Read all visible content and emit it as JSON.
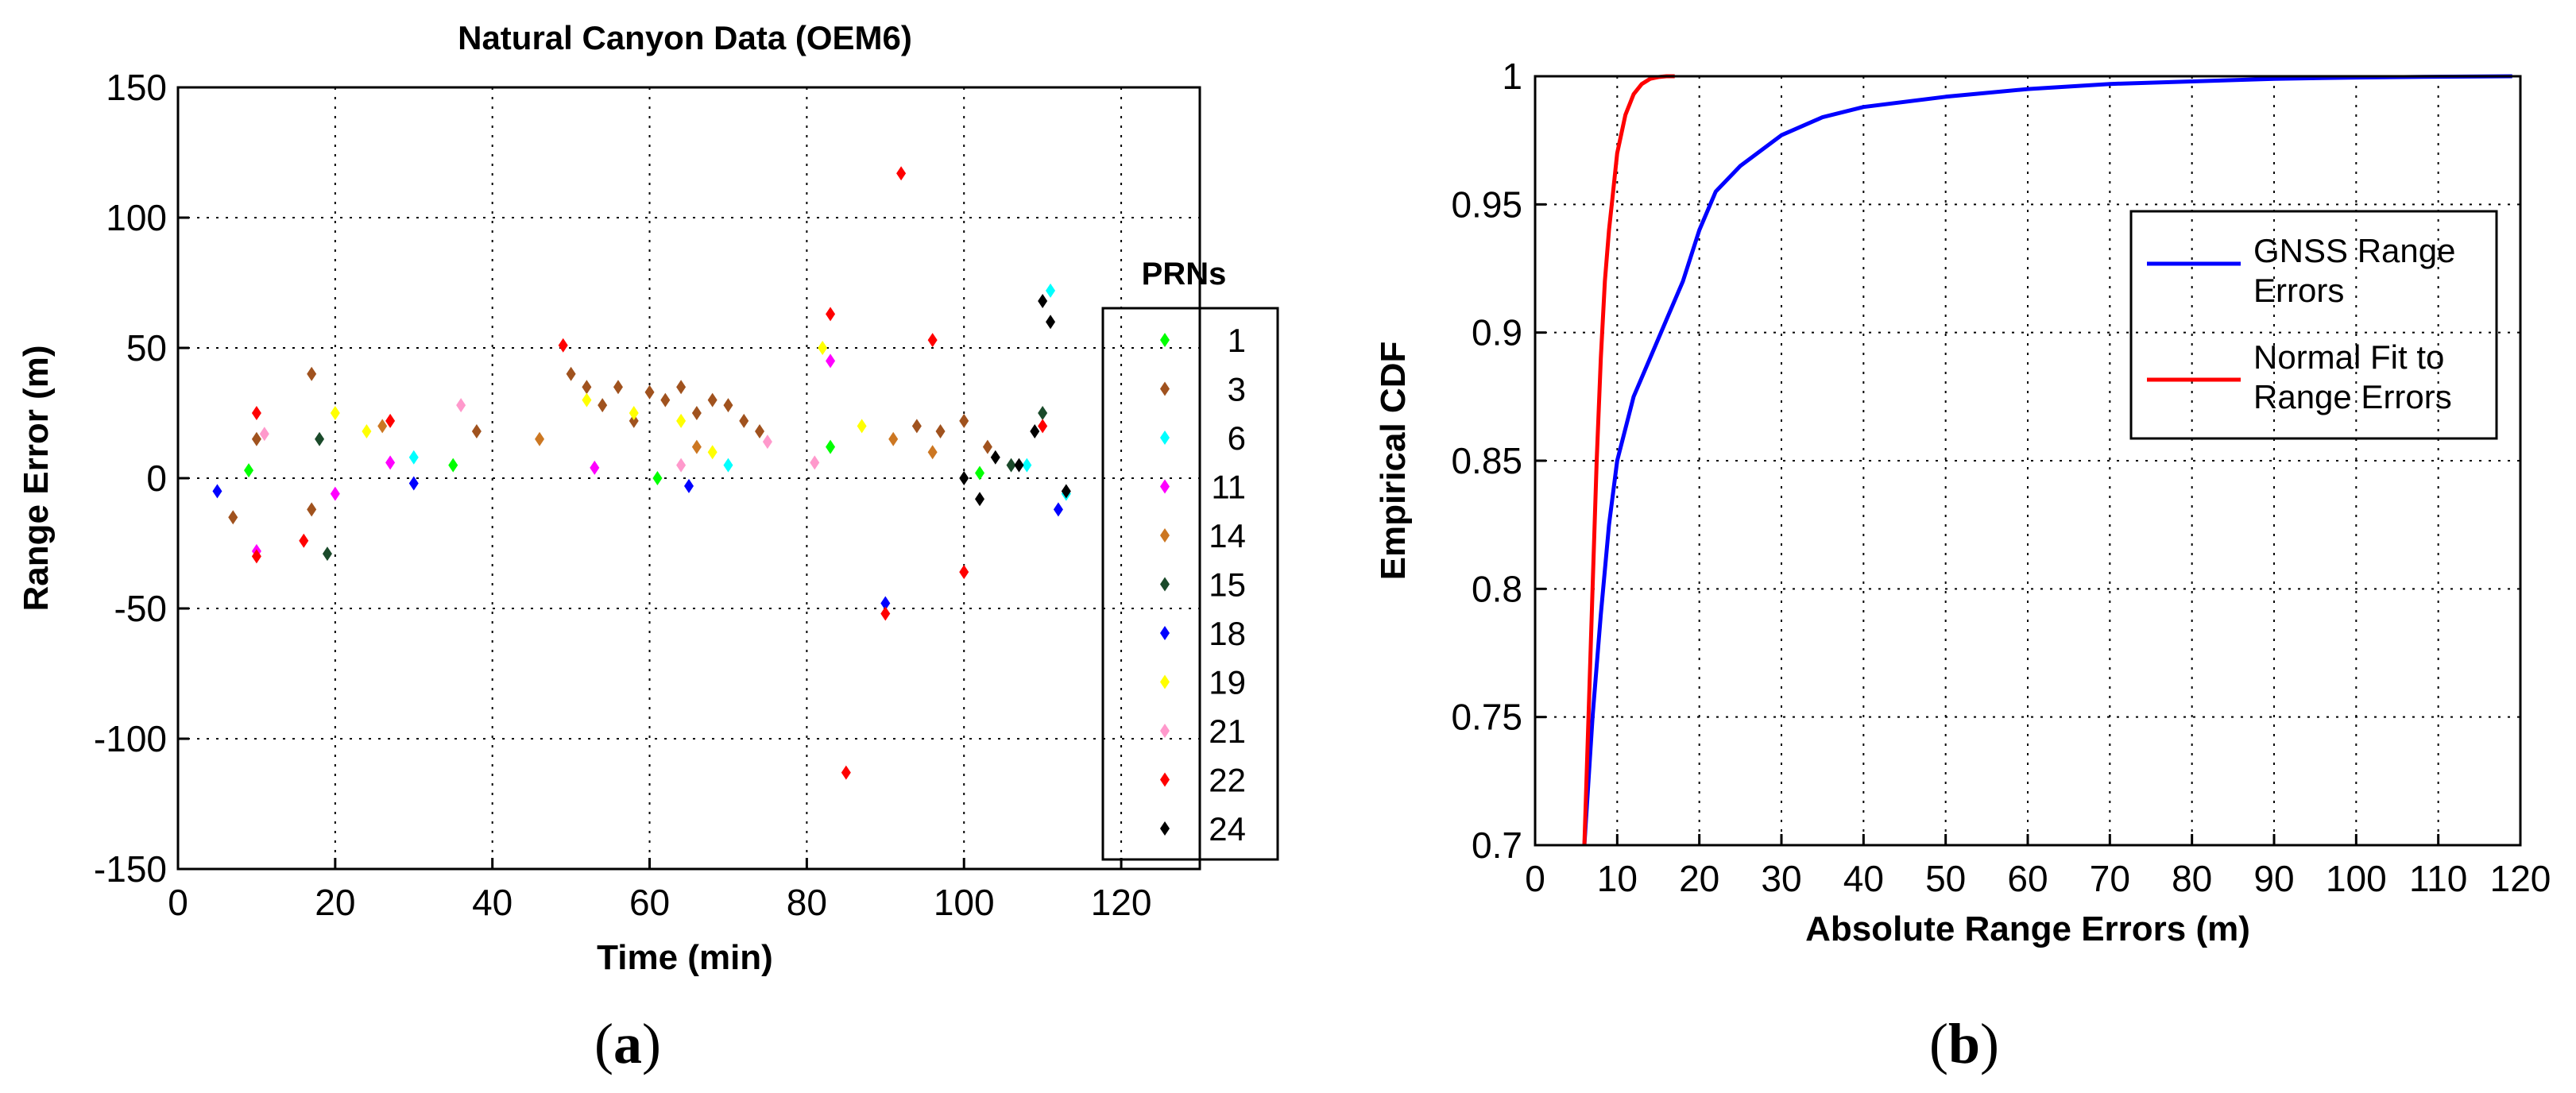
{
  "chart_data": [
    {
      "id": "a",
      "panel_label": "a",
      "type": "scatter",
      "title": "Natural Canyon Data (OEM6)",
      "xlabel": "Time (min)",
      "ylabel": "Range Error (m)",
      "xlim": [
        0,
        130
      ],
      "ylim": [
        -150,
        150
      ],
      "xticks": [
        0,
        20,
        40,
        60,
        80,
        100,
        120
      ],
      "yticks": [
        -150,
        -100,
        -50,
        0,
        50,
        100,
        150
      ],
      "grid": true,
      "legend_title": "PRNs",
      "legend_position": "right",
      "series": [
        {
          "name": "1",
          "color": "#00ff00",
          "values": [
            [
              9,
              3
            ],
            [
              35,
              5
            ],
            [
              61,
              0
            ],
            [
              83,
              12
            ],
            [
              102,
              2
            ]
          ]
        },
        {
          "name": "3",
          "color": "#a0521e",
          "values": [
            [
              10,
              15
            ],
            [
              17,
              40
            ],
            [
              38,
              18
            ],
            [
              50,
              40
            ],
            [
              52,
              35
            ],
            [
              54,
              28
            ],
            [
              56,
              35
            ],
            [
              58,
              22
            ],
            [
              60,
              33
            ],
            [
              62,
              30
            ],
            [
              64,
              35
            ],
            [
              66,
              25
            ],
            [
              68,
              30
            ],
            [
              70,
              28
            ],
            [
              72,
              22
            ],
            [
              74,
              18
            ],
            [
              94,
              20
            ],
            [
              97,
              18
            ],
            [
              100,
              22
            ],
            [
              103,
              12
            ],
            [
              7,
              -15
            ],
            [
              17,
              -12
            ]
          ]
        },
        {
          "name": "6",
          "color": "#00ffff",
          "values": [
            [
              30,
              8
            ],
            [
              70,
              5
            ],
            [
              108,
              5
            ],
            [
              111,
              72
            ],
            [
              113,
              -6
            ]
          ]
        },
        {
          "name": "11",
          "color": "#ff00ff",
          "values": [
            [
              10,
              -28
            ],
            [
              20,
              -6
            ],
            [
              27,
              6
            ],
            [
              53,
              4
            ],
            [
              83,
              45
            ]
          ]
        },
        {
          "name": "14",
          "color": "#cc7722",
          "values": [
            [
              26,
              20
            ],
            [
              46,
              15
            ],
            [
              66,
              12
            ],
            [
              91,
              15
            ],
            [
              96,
              10
            ]
          ]
        },
        {
          "name": "15",
          "color": "#1a4a2a",
          "values": [
            [
              18,
              15
            ],
            [
              19,
              -29
            ],
            [
              106,
              5
            ],
            [
              110,
              25
            ]
          ]
        },
        {
          "name": "18",
          "color": "#0000ff",
          "values": [
            [
              5,
              -5
            ],
            [
              30,
              -2
            ],
            [
              65,
              -3
            ],
            [
              90,
              -48
            ],
            [
              112,
              -12
            ]
          ]
        },
        {
          "name": "19",
          "color": "#ffff00",
          "values": [
            [
              20,
              25
            ],
            [
              24,
              18
            ],
            [
              52,
              30
            ],
            [
              58,
              25
            ],
            [
              64,
              22
            ],
            [
              68,
              10
            ],
            [
              82,
              50
            ],
            [
              87,
              20
            ]
          ]
        },
        {
          "name": "21",
          "color": "#ff99cc",
          "values": [
            [
              11,
              17
            ],
            [
              36,
              28
            ],
            [
              64,
              5
            ],
            [
              75,
              14
            ],
            [
              81,
              6
            ]
          ]
        },
        {
          "name": "22",
          "color": "#ff0000",
          "values": [
            [
              10,
              -30
            ],
            [
              10,
              25
            ],
            [
              16,
              -24
            ],
            [
              27,
              22
            ],
            [
              49,
              51
            ],
            [
              83,
              63
            ],
            [
              85,
              -113
            ],
            [
              90,
              -52
            ],
            [
              92,
              117
            ],
            [
              96,
              53
            ],
            [
              100,
              -36
            ],
            [
              110,
              20
            ]
          ]
        },
        {
          "name": "24",
          "color": "#000000",
          "values": [
            [
              100,
              0
            ],
            [
              102,
              -8
            ],
            [
              104,
              8
            ],
            [
              107,
              5
            ],
            [
              109,
              18
            ],
            [
              110,
              68
            ],
            [
              111,
              60
            ],
            [
              113,
              -5
            ]
          ]
        }
      ]
    },
    {
      "id": "b",
      "panel_label": "b",
      "type": "line",
      "title": "",
      "xlabel": "Absolute Range Errors (m)",
      "ylabel": "Empirical CDF",
      "xlim": [
        0,
        120
      ],
      "ylim": [
        0.7,
        1.0
      ],
      "xticks": [
        0,
        10,
        20,
        30,
        40,
        50,
        60,
        70,
        80,
        90,
        100,
        110,
        120
      ],
      "yticks": [
        0.7,
        0.75,
        0.8,
        0.85,
        0.9,
        0.95,
        1
      ],
      "grid": true,
      "legend_position": "top-right",
      "series": [
        {
          "name": "GNSS Range Errors",
          "color": "#0000ff",
          "x": [
            6,
            7,
            8,
            9,
            10,
            12,
            14,
            16,
            18,
            20,
            22,
            25,
            30,
            35,
            40,
            50,
            60,
            70,
            80,
            90,
            100,
            110,
            119
          ],
          "y": [
            0.7,
            0.75,
            0.79,
            0.825,
            0.85,
            0.875,
            0.89,
            0.905,
            0.92,
            0.94,
            0.955,
            0.965,
            0.977,
            0.984,
            0.988,
            0.992,
            0.995,
            0.997,
            0.998,
            0.999,
            0.9995,
            0.9998,
            1.0
          ]
        },
        {
          "name": "Normal Fit to Range Errors",
          "color": "#ff0000",
          "x": [
            6,
            6.5,
            7,
            7.5,
            8,
            8.5,
            9,
            9.5,
            10,
            11,
            12,
            13,
            14,
            15,
            16,
            17
          ],
          "y": [
            0.7,
            0.75,
            0.8,
            0.85,
            0.89,
            0.92,
            0.94,
            0.955,
            0.97,
            0.985,
            0.993,
            0.997,
            0.999,
            0.9997,
            1.0,
            1.0
          ]
        }
      ]
    }
  ]
}
